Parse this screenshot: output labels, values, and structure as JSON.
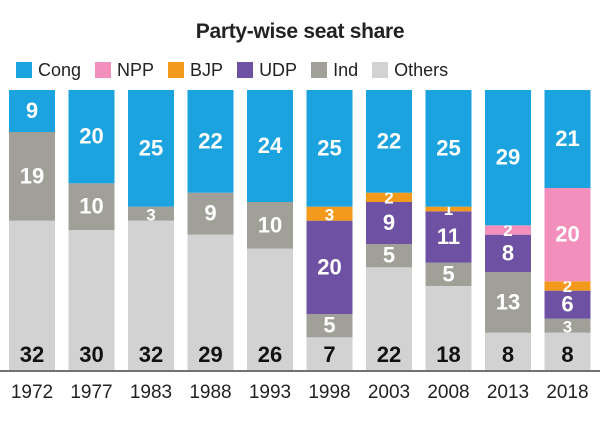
{
  "chart_data": {
    "type": "bar",
    "stacked": true,
    "normalized": true,
    "title": "Party-wise seat share",
    "xlabel": "",
    "ylabel": "",
    "legend_position": "top",
    "categories": [
      "1972",
      "1977",
      "1983",
      "1988",
      "1993",
      "1998",
      "2003",
      "2008",
      "2013",
      "2018"
    ],
    "series": [
      {
        "name": "Others",
        "color": "#d2d2d2",
        "values": [
          32,
          30,
          32,
          29,
          26,
          7,
          22,
          18,
          8,
          8
        ]
      },
      {
        "name": "Ind",
        "color": "#a09f98",
        "values": [
          19,
          10,
          3,
          9,
          10,
          5,
          5,
          5,
          13,
          3
        ]
      },
      {
        "name": "UDP",
        "color": "#6e51a3",
        "values": [
          0,
          0,
          0,
          0,
          0,
          20,
          9,
          11,
          8,
          6
        ]
      },
      {
        "name": "BJP",
        "color": "#f39a1c",
        "values": [
          0,
          0,
          0,
          0,
          0,
          3,
          2,
          1,
          0,
          2
        ]
      },
      {
        "name": "NPP",
        "color": "#f28fbd",
        "values": [
          0,
          0,
          0,
          0,
          0,
          0,
          0,
          0,
          2,
          20
        ]
      },
      {
        "name": "Cong",
        "color": "#1ba3e0",
        "values": [
          9,
          20,
          25,
          22,
          24,
          25,
          22,
          25,
          29,
          21
        ]
      }
    ],
    "legend_order": [
      "Cong",
      "NPP",
      "BJP",
      "UDP",
      "Ind",
      "Others"
    ]
  }
}
